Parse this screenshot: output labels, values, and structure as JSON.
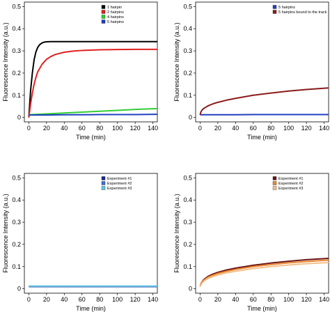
{
  "chart_data": [
    {
      "type": "line",
      "xlabel": "Time (min)",
      "ylabel": "Fluorescence Intensity (a.u.)",
      "xlim": [
        -5,
        145
      ],
      "ylim": [
        -0.02,
        0.52
      ],
      "xticks": [
        0,
        20,
        40,
        60,
        80,
        100,
        120,
        140
      ],
      "yticks": [
        0,
        0.1,
        0.2,
        0.3,
        0.4,
        0.5
      ],
      "legend_position": "top-right",
      "series": [
        {
          "name": "1 hairpin",
          "color": "#000000",
          "x": [
            0,
            2,
            4,
            6,
            8,
            10,
            12,
            15,
            18,
            20,
            25,
            30,
            40,
            60,
            80,
            100,
            120,
            145
          ],
          "y": [
            0.0,
            0.12,
            0.2,
            0.26,
            0.295,
            0.315,
            0.327,
            0.336,
            0.34,
            0.341,
            0.342,
            0.342,
            0.342,
            0.342,
            0.342,
            0.342,
            0.342,
            0.342
          ]
        },
        {
          "name": "2 hairpins",
          "color": "#e02020",
          "x": [
            0,
            2,
            4,
            6,
            8,
            10,
            15,
            20,
            25,
            30,
            40,
            50,
            60,
            80,
            100,
            120,
            145
          ],
          "y": [
            0.0,
            0.06,
            0.11,
            0.15,
            0.18,
            0.205,
            0.24,
            0.262,
            0.275,
            0.284,
            0.294,
            0.299,
            0.302,
            0.305,
            0.306,
            0.307,
            0.307
          ]
        },
        {
          "name": "4 hairpins",
          "color": "#33cc33",
          "x": [
            0,
            20,
            40,
            60,
            80,
            100,
            120,
            145
          ],
          "y": [
            0.012,
            0.016,
            0.02,
            0.024,
            0.028,
            0.032,
            0.036,
            0.04
          ]
        },
        {
          "name": "5 hairpins",
          "color": "#1f3fbf",
          "x": [
            0,
            20,
            40,
            60,
            80,
            100,
            120,
            145
          ],
          "y": [
            0.011,
            0.011,
            0.012,
            0.012,
            0.013,
            0.013,
            0.013,
            0.014
          ]
        }
      ]
    },
    {
      "type": "line",
      "xlabel": "Time (min)",
      "ylabel": "Fluorescence Intensity (a.u.)",
      "xlim": [
        -5,
        145
      ],
      "ylim": [
        -0.02,
        0.52
      ],
      "xticks": [
        0,
        20,
        40,
        60,
        80,
        100,
        120,
        140
      ],
      "yticks": [
        0,
        0.1,
        0.2,
        0.3,
        0.4,
        0.5
      ],
      "legend_position": "top-right",
      "series": [
        {
          "name": "5 hairpins",
          "color": "#1f3fbf",
          "x": [
            0,
            20,
            40,
            60,
            80,
            100,
            120,
            145
          ],
          "y": [
            0.012,
            0.012,
            0.012,
            0.013,
            0.013,
            0.013,
            0.013,
            0.013
          ]
        },
        {
          "name": "5 hairpins bound to the track",
          "color": "#8b1a1a",
          "x": [
            0,
            1,
            2,
            4,
            6,
            8,
            10,
            15,
            20,
            30,
            40,
            60,
            80,
            100,
            120,
            145
          ],
          "y": [
            0.012,
            0.025,
            0.032,
            0.04,
            0.045,
            0.05,
            0.054,
            0.062,
            0.068,
            0.078,
            0.086,
            0.1,
            0.11,
            0.119,
            0.126,
            0.133
          ]
        }
      ]
    },
    {
      "type": "line",
      "xlabel": "Time (min)",
      "ylabel": "Fluorescence Intensity (a.u.)",
      "xlim": [
        -5,
        145
      ],
      "ylim": [
        -0.02,
        0.52
      ],
      "xticks": [
        0,
        20,
        40,
        60,
        80,
        100,
        120,
        140
      ],
      "yticks": [
        0,
        0.1,
        0.2,
        0.3,
        0.4,
        0.5
      ],
      "legend_position": "top-right",
      "series": [
        {
          "name": "Experiment #1",
          "color": "#1a2a8c",
          "x": [
            0,
            20,
            40,
            60,
            80,
            100,
            120,
            145
          ],
          "y": [
            0.01,
            0.01,
            0.01,
            0.01,
            0.01,
            0.01,
            0.01,
            0.01
          ]
        },
        {
          "name": "Experiment #2",
          "color": "#3c6fd8",
          "x": [
            0,
            20,
            40,
            60,
            80,
            100,
            120,
            145
          ],
          "y": [
            0.011,
            0.011,
            0.011,
            0.011,
            0.011,
            0.011,
            0.011,
            0.011
          ]
        },
        {
          "name": "Experiment #3",
          "color": "#5fc6e0",
          "x": [
            0,
            20,
            40,
            60,
            80,
            100,
            120,
            145
          ],
          "y": [
            0.012,
            0.012,
            0.012,
            0.012,
            0.012,
            0.012,
            0.012,
            0.012
          ]
        }
      ]
    },
    {
      "type": "line",
      "xlabel": "Time (min)",
      "ylabel": "Fluorescence Intensity (a.u.)",
      "xlim": [
        -5,
        145
      ],
      "ylim": [
        -0.02,
        0.52
      ],
      "xticks": [
        0,
        20,
        40,
        60,
        80,
        100,
        120,
        140
      ],
      "yticks": [
        0,
        0.1,
        0.2,
        0.3,
        0.4,
        0.5
      ],
      "legend_position": "top-right",
      "series": [
        {
          "name": "Experiment #1",
          "color": "#6b1414",
          "x": [
            0,
            1,
            2,
            4,
            6,
            8,
            10,
            15,
            20,
            30,
            40,
            60,
            80,
            100,
            120,
            145
          ],
          "y": [
            0.01,
            0.022,
            0.03,
            0.04,
            0.047,
            0.053,
            0.058,
            0.067,
            0.074,
            0.085,
            0.093,
            0.106,
            0.116,
            0.124,
            0.131,
            0.137
          ]
        },
        {
          "name": "Experiment #2",
          "color": "#e8862e",
          "x": [
            0,
            1,
            2,
            4,
            6,
            8,
            10,
            15,
            20,
            30,
            40,
            60,
            80,
            100,
            120,
            145
          ],
          "y": [
            0.01,
            0.02,
            0.028,
            0.037,
            0.043,
            0.049,
            0.054,
            0.062,
            0.069,
            0.079,
            0.087,
            0.1,
            0.109,
            0.117,
            0.123,
            0.129
          ]
        },
        {
          "name": "Experiment #3",
          "color": "#f2c08c",
          "x": [
            0,
            1,
            2,
            4,
            6,
            8,
            10,
            15,
            20,
            30,
            40,
            60,
            80,
            100,
            120,
            145
          ],
          "y": [
            0.01,
            0.018,
            0.025,
            0.033,
            0.039,
            0.044,
            0.048,
            0.056,
            0.062,
            0.072,
            0.079,
            0.091,
            0.1,
            0.107,
            0.113,
            0.118
          ]
        }
      ]
    }
  ]
}
